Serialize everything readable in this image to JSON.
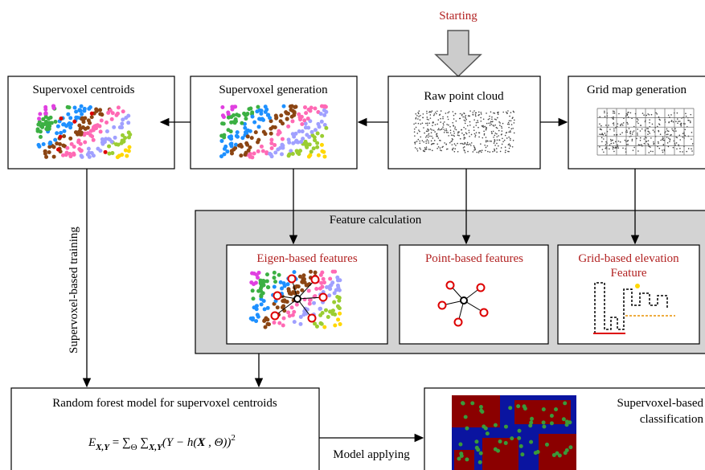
{
  "start": "Starting",
  "boxes": {
    "centroids": "Supervoxel centroids",
    "generation": "Supervoxel generation",
    "raw": "Raw point cloud",
    "grid": "Grid map generation"
  },
  "feature_panel": {
    "title": "Feature calculation",
    "eigen": "Eigen-based features",
    "point": "Point-based features",
    "grid_lines": [
      "Grid-based elevation",
      "Feature"
    ]
  },
  "training": "Supervoxel-based training",
  "model": {
    "title": "Random forest model for supervoxel centroids",
    "formula": [
      "E",
      "X,Y",
      " = ∑",
      "Θ",
      " ∑",
      "X,Y",
      "(Y − h(",
      "X",
      " , Θ))",
      "2"
    ]
  },
  "applying": "Model applying",
  "classification_lines": [
    "Supervoxel-based",
    "classification"
  ]
}
